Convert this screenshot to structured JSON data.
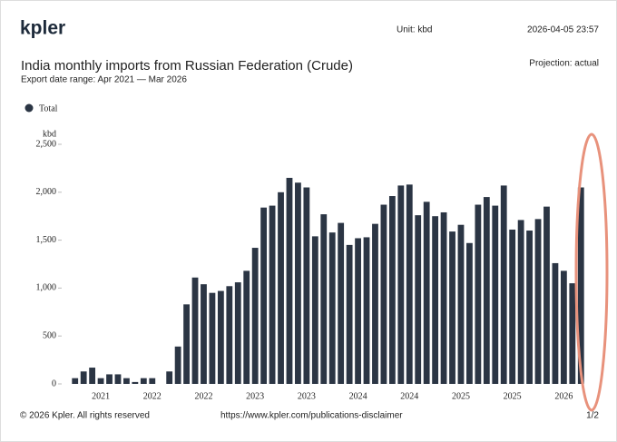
{
  "header": {
    "logo": "kpler",
    "unit": "Unit: kbd",
    "timestamp": "2026-04-05 23:57",
    "projection": "Projection: actual"
  },
  "footer": {
    "copyright": "© 2026 Kpler. All rights reserved",
    "url": "https://www.kpler.com/publications-disclaimer",
    "page": "1/2"
  },
  "chart_data": {
    "type": "bar",
    "title": "India monthly imports from Russian Federation (Crude)",
    "subtitle": "Export date range: Apr 2021 — Mar 2026",
    "ylabel": "kbd",
    "categories": [
      null,
      null,
      null,
      "2021",
      null,
      null,
      null,
      null,
      null,
      "2022",
      null,
      null,
      null,
      null,
      null,
      "2022",
      null,
      null,
      null,
      null,
      null,
      "2023",
      null,
      null,
      null,
      null,
      null,
      "2023",
      null,
      null,
      null,
      null,
      null,
      "2024",
      null,
      null,
      null,
      null,
      null,
      "2024",
      null,
      null,
      null,
      null,
      null,
      "2025",
      null,
      null,
      null,
      null,
      null,
      "2025",
      null,
      null,
      null,
      null,
      null,
      "2026",
      null,
      null
    ],
    "series": [
      {
        "name": "Total",
        "color": "#2b3544",
        "values": [
          60,
          130,
          170,
          60,
          100,
          100,
          60,
          20,
          60,
          60,
          0,
          130,
          390,
          830,
          1110,
          1040,
          950,
          970,
          1020,
          1060,
          1180,
          1420,
          1840,
          1860,
          2000,
          2150,
          2100,
          2050,
          1540,
          1770,
          1580,
          1680,
          1450,
          1520,
          1530,
          1670,
          1870,
          1960,
          2070,
          2080,
          1760,
          1900,
          1750,
          1790,
          1590,
          1660,
          1470,
          1870,
          1950,
          1860,
          2070,
          1610,
          1710,
          1600,
          1720,
          1850,
          1260,
          1180,
          1050,
          2050
        ]
      }
    ],
    "ylim": [
      0,
      2500
    ],
    "yticks": [
      0,
      500,
      {
        "value": 1000,
        "label": "1,000"
      },
      {
        "value": 1500,
        "label": "1,500"
      },
      {
        "value": 2000,
        "label": "2,000"
      },
      {
        "value": 2500,
        "label": "2,500"
      }
    ],
    "grid": false,
    "legend": "top-left"
  }
}
